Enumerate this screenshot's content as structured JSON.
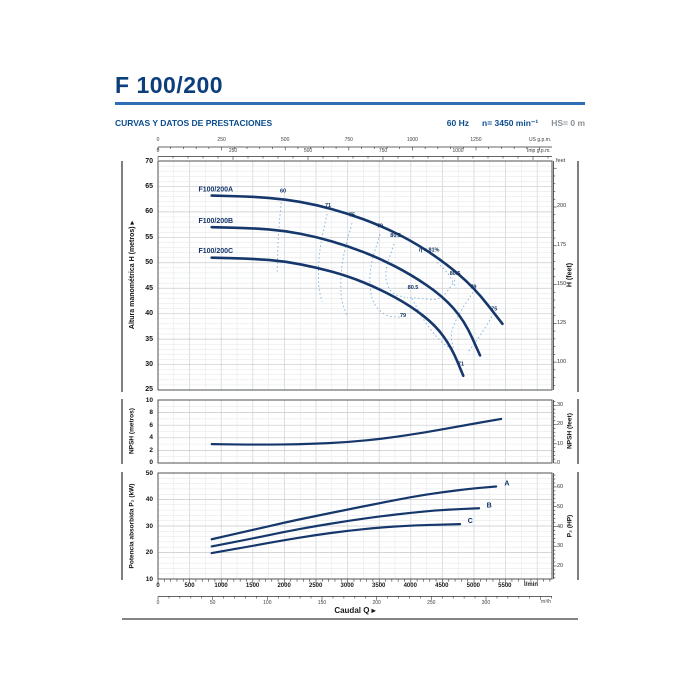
{
  "header": {
    "title": "F 100/200",
    "subtitle": "CURVAS Y DATOS DE PRESTACIONES",
    "frequency": "60 Hz",
    "speed": "n= 3450 min⁻¹",
    "suction": "HS= 0 m"
  },
  "flow_axes": {
    "us_gpm": {
      "ticks": [
        "0",
        "250",
        "500",
        "750",
        "1000",
        "1250"
      ],
      "unit": "US g.p.m."
    },
    "imp_gpm": {
      "ticks": [
        "0",
        "250",
        "500",
        "750",
        "1000"
      ],
      "unit": "Imp g.p.m."
    },
    "l_min": {
      "ticks": [
        "0",
        "500",
        "1000",
        "1500",
        "2000",
        "2500",
        "3000",
        "3500",
        "4000",
        "4500",
        "5000",
        "5500"
      ],
      "unit": "l/min"
    },
    "m3_h": {
      "ticks": [
        "0",
        "50",
        "100",
        "150",
        "200",
        "250",
        "300"
      ],
      "unit": "m³/h"
    },
    "caudal_label": "Caudal Q  ▸"
  },
  "chart_data": [
    {
      "type": "line",
      "title": "Head vs flow curves",
      "xlabel": "Caudal Q",
      "x_unit": "l/min",
      "ylabel": "Altura manométrica H (metros)  ▸",
      "y2label": "H (feet)",
      "y2unit": "feet",
      "ylim": [
        25,
        70
      ],
      "xlim": [
        0,
        6234
      ],
      "grid": true,
      "y_ticks": [
        "70",
        "65",
        "60",
        "55",
        "50",
        "45",
        "40",
        "35",
        "30",
        "25"
      ],
      "y2_ticks": [
        "200",
        "175",
        "150",
        "125",
        "100"
      ],
      "series": [
        {
          "name": "F100/200A",
          "points": [
            [
              850,
              63.2
            ],
            [
              1500,
              63.0
            ],
            [
              2000,
              62.5
            ],
            [
              2500,
              61.4
            ],
            [
              3000,
              59.7
            ],
            [
              3500,
              57.4
            ],
            [
              4000,
              54.4
            ],
            [
              4500,
              50.4
            ],
            [
              5000,
              45.2
            ],
            [
              5450,
              38.0
            ]
          ]
        },
        {
          "name": "F100/200B",
          "points": [
            [
              850,
              57.0
            ],
            [
              1500,
              56.8
            ],
            [
              2000,
              56.3
            ],
            [
              2500,
              55.1
            ],
            [
              3000,
              53.3
            ],
            [
              3500,
              50.9
            ],
            [
              4000,
              47.7
            ],
            [
              4500,
              43.5
            ],
            [
              4850,
              38.6
            ],
            [
              5095,
              31.8
            ]
          ]
        },
        {
          "name": "F100/200C",
          "points": [
            [
              850,
              51.0
            ],
            [
              1500,
              50.8
            ],
            [
              2000,
              50.3
            ],
            [
              2500,
              49.1
            ],
            [
              3000,
              47.4
            ],
            [
              3500,
              44.9
            ],
            [
              4000,
              41.5
            ],
            [
              4400,
              37.6
            ],
            [
              4650,
              33.2
            ],
            [
              4830,
              27.8
            ]
          ]
        }
      ],
      "efficiency_contours": [
        {
          "value": "60",
          "points": [
            [
              1950,
              61.9
            ],
            [
              1900,
              55.2
            ],
            [
              1885,
              48.0
            ]
          ]
        },
        {
          "value": "71",
          "points": [
            [
              2674,
              59.6
            ],
            [
              2547,
              52.3
            ],
            [
              2532,
              45.4
            ],
            [
              2595,
              42.4
            ]
          ]
        },
        {
          "value": "75",
          "points": [
            [
              3070,
              57.8
            ],
            [
              2911,
              50.7
            ],
            [
              2880,
              43.4
            ],
            [
              2991,
              39.5
            ]
          ]
        },
        {
          "value": "79",
          "points": [
            [
              3513,
              55.6
            ],
            [
              3339,
              48.7
            ],
            [
              3370,
              42.4
            ],
            [
              3592,
              39.5
            ],
            [
              3829,
              39.3
            ]
          ]
        },
        {
          "value": "80.5",
          "points": [
            [
              3734,
              53.7
            ],
            [
              3576,
              48.0
            ],
            [
              3671,
              44.0
            ],
            [
              3908,
              43.2
            ]
          ]
        },
        {
          "value": "80.5-right",
          "points": [
            [
              4700,
              46.6
            ],
            [
              4478,
              42.6
            ],
            [
              4146,
              43.0
            ],
            [
              3940,
              43.2
            ]
          ]
        },
        {
          "value": "80.5-lower",
          "points": [
            [
              4019,
              43.0
            ],
            [
              4209,
              38.5
            ],
            [
              4462,
              34.6
            ],
            [
              4620,
              33.2
            ]
          ]
        },
        {
          "value": "79-right",
          "points": [
            [
              4985,
              44.2
            ],
            [
              4750,
              39.8
            ],
            [
              4620,
              36.0
            ],
            [
              4680,
              32.8
            ]
          ]
        },
        {
          "value": "75-right",
          "points": [
            [
              5316,
              40.1
            ],
            [
              5095,
              35.6
            ],
            [
              4890,
              32.2
            ]
          ]
        },
        {
          "value": "81",
          "points": [
            [
              4415,
              50.1
            ],
            [
              4605,
              47.8
            ],
            [
              4716,
              45.0
            ]
          ]
        }
      ],
      "annotations": [
        {
          "t": "F100/200A",
          "q": 640,
          "v": 64.0,
          "anchor": "start",
          "cls": "name"
        },
        {
          "t": "F100/200B",
          "q": 640,
          "v": 57.8,
          "anchor": "start",
          "cls": "name"
        },
        {
          "t": "F100/200C",
          "q": 640,
          "v": 51.9,
          "anchor": "start",
          "cls": "name"
        },
        {
          "t": "60",
          "q": 1978,
          "v": 63.8
        },
        {
          "t": "71",
          "q": 2690,
          "v": 61.0
        },
        {
          "t": "75",
          "q": 3070,
          "v": 59.1
        },
        {
          "t": "79",
          "q": 3513,
          "v": 56.9
        },
        {
          "t": "80.5",
          "q": 3760,
          "v": 55.1
        },
        {
          "t": "η = 81%",
          "q": 4290,
          "v": 52.2
        },
        {
          "t": "80.5",
          "q": 4700,
          "v": 47.6
        },
        {
          "t": "79",
          "q": 4990,
          "v": 44.9
        },
        {
          "t": "75",
          "q": 5320,
          "v": 40.6
        },
        {
          "t": "80.5",
          "q": 4035,
          "v": 44.8
        },
        {
          "t": "79",
          "q": 3877,
          "v": 39.3
        },
        {
          "t": "71",
          "q": 4794,
          "v": 29.8
        }
      ]
    },
    {
      "type": "line",
      "title": "NPSH vs flow",
      "ylabel": "NPSH (metros)",
      "y2label": "NPSH (feet)",
      "ylim": [
        0,
        10
      ],
      "grid": true,
      "y_ticks": [
        "10",
        "8",
        "6",
        "4",
        "2",
        "0"
      ],
      "y2_ticks": [
        "30",
        "20",
        "10",
        "0"
      ],
      "series": [
        {
          "name": "NPSH",
          "points": [
            [
              850,
              3.0
            ],
            [
              1600,
              2.9
            ],
            [
              2400,
              3.0
            ],
            [
              3000,
              3.3
            ],
            [
              3600,
              3.9
            ],
            [
              4200,
              4.8
            ],
            [
              4800,
              5.9
            ],
            [
              5430,
              7.0
            ]
          ]
        }
      ],
      "annotations": []
    },
    {
      "type": "line",
      "title": "Absorbed power vs flow",
      "ylabel": "Potencia absorbida P₂ (kW)",
      "y2label": "P₂ (HP)",
      "ylim": [
        10,
        50
      ],
      "grid": true,
      "y_ticks": [
        "50",
        "40",
        "30",
        "20",
        "10"
      ],
      "y2_ticks": [
        "60",
        "50",
        "40",
        "30",
        "20"
      ],
      "series": [
        {
          "name": "A",
          "points": [
            [
              850,
              25.0
            ],
            [
              1500,
              28.5
            ],
            [
              2000,
              31.3
            ],
            [
              2500,
              33.8
            ],
            [
              3000,
              36.2
            ],
            [
              3500,
              38.6
            ],
            [
              4000,
              40.9
            ],
            [
              4500,
              42.8
            ],
            [
              5000,
              44.2
            ],
            [
              5350,
              44.9
            ]
          ]
        },
        {
          "name": "B",
          "points": [
            [
              850,
              22.3
            ],
            [
              1500,
              25.3
            ],
            [
              2000,
              27.8
            ],
            [
              2500,
              30.0
            ],
            [
              3000,
              31.9
            ],
            [
              3500,
              33.6
            ],
            [
              4000,
              35.0
            ],
            [
              4500,
              36.1
            ],
            [
              5080,
              36.7
            ]
          ]
        },
        {
          "name": "C",
          "points": [
            [
              850,
              19.8
            ],
            [
              1500,
              22.5
            ],
            [
              2000,
              24.7
            ],
            [
              2500,
              26.6
            ],
            [
              3000,
              28.2
            ],
            [
              3500,
              29.4
            ],
            [
              4000,
              30.2
            ],
            [
              4780,
              30.7
            ]
          ]
        }
      ],
      "annotations": [
        {
          "t": "A",
          "q": 5480,
          "v": 45.2,
          "anchor": "start",
          "cls": "name"
        },
        {
          "t": "B",
          "q": 5200,
          "v": 36.9,
          "anchor": "start",
          "cls": "name"
        },
        {
          "t": "C",
          "q": 4900,
          "v": 31.2,
          "anchor": "start",
          "cls": "name"
        }
      ]
    }
  ],
  "colors": {
    "curve": "#16376b",
    "title": "#0c3e7c",
    "accent_line": "#2d6db5",
    "header_text": "#0b4d8c",
    "efficiency_dash": "#8cb8df",
    "muted_text": "#8a9096"
  }
}
